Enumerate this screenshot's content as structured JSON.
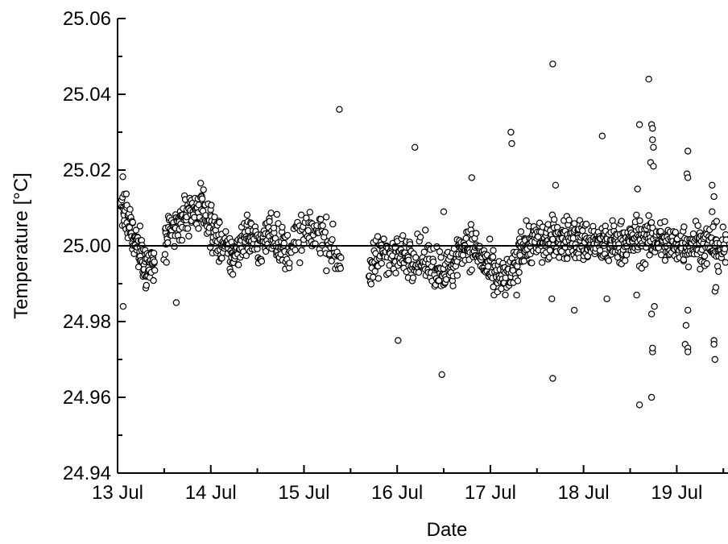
{
  "chart_data": {
    "type": "scatter",
    "xlabel": "Date",
    "ylabel": "Temperature [°C]",
    "x_tick_labels": [
      "13 Jul",
      "14 Jul",
      "15 Jul",
      "16 Jul",
      "17 Jul",
      "18 Jul",
      "19 Jul"
    ],
    "y_tick_labels": [
      "24.94",
      "24.96",
      "24.98",
      "25.00",
      "25.02",
      "25.04",
      "25.06"
    ],
    "x_unit": "days since 13 Jul",
    "xlim": [
      0,
      6.55
    ],
    "ylim": [
      24.94,
      25.06
    ],
    "reference_line": 25.0,
    "grid": false,
    "legend": "none",
    "colors": {
      "marker_edge": "#000000",
      "marker_fill": "#ffffff",
      "line": "#000000"
    },
    "segments": [
      {
        "start": 0.04,
        "end": 0.4,
        "n": 110,
        "values": [
          25.012,
          25.006,
          25.002,
          24.998,
          24.994,
          24.995
        ]
      },
      {
        "start": 0.5,
        "end": 1.05,
        "n": 130,
        "values": [
          25.0,
          25.004,
          25.008,
          25.01,
          25.009,
          25.003
        ]
      },
      {
        "start": 1.05,
        "end": 1.4,
        "n": 90,
        "values": [
          25.003,
          25.0,
          24.998,
          24.997,
          25.002,
          25.003
        ]
      },
      {
        "start": 1.4,
        "end": 1.8,
        "n": 95,
        "values": [
          25.003,
          25.001,
          25.0,
          25.004,
          25.002,
          24.998
        ]
      },
      {
        "start": 1.8,
        "end": 2.4,
        "n": 90,
        "values": [
          24.998,
          25.002,
          25.003,
          25.004,
          25.0,
          24.996
        ]
      },
      {
        "start": 2.7,
        "end": 3.1,
        "n": 80,
        "values": [
          24.993,
          24.996,
          24.999,
          24.998,
          24.997,
          24.998
        ]
      },
      {
        "start": 3.1,
        "end": 3.6,
        "n": 100,
        "values": [
          24.998,
          24.997,
          24.996,
          24.995,
          24.994,
          24.993
        ]
      },
      {
        "start": 3.6,
        "end": 4.3,
        "n": 160,
        "values": [
          24.996,
          25.001,
          24.998,
          24.992,
          24.991,
          24.994
        ]
      },
      {
        "start": 4.3,
        "end": 5.0,
        "n": 170,
        "values": [
          25.0,
          25.001,
          25.001,
          25.002,
          25.002,
          25.001
        ]
      },
      {
        "start": 5.0,
        "end": 5.6,
        "n": 150,
        "values": [
          25.001,
          25.001,
          25.0,
          25.001,
          25.001,
          25.002
        ]
      },
      {
        "start": 5.6,
        "end": 6.55,
        "n": 230,
        "values": [
          25.001,
          25.002,
          25.0,
          25.001,
          25.0,
          24.999
        ]
      }
    ],
    "outliers": [
      {
        "x": 0.06,
        "y": 24.984
      },
      {
        "x": 0.63,
        "y": 24.985
      },
      {
        "x": 2.38,
        "y": 25.036
      },
      {
        "x": 2.18,
        "y": 25.007
      },
      {
        "x": 3.01,
        "y": 24.975
      },
      {
        "x": 3.19,
        "y": 25.026
      },
      {
        "x": 3.48,
        "y": 24.966
      },
      {
        "x": 3.5,
        "y": 25.009
      },
      {
        "x": 3.8,
        "y": 25.018
      },
      {
        "x": 4.22,
        "y": 25.03
      },
      {
        "x": 4.23,
        "y": 25.027
      },
      {
        "x": 4.67,
        "y": 25.048
      },
      {
        "x": 4.67,
        "y": 24.965
      },
      {
        "x": 4.7,
        "y": 25.016
      },
      {
        "x": 4.66,
        "y": 24.986
      },
      {
        "x": 4.9,
        "y": 24.983
      },
      {
        "x": 5.2,
        "y": 25.029
      },
      {
        "x": 5.25,
        "y": 24.986
      },
      {
        "x": 5.6,
        "y": 24.958
      },
      {
        "x": 5.6,
        "y": 25.032
      },
      {
        "x": 5.7,
        "y": 25.044
      },
      {
        "x": 5.73,
        "y": 25.032
      },
      {
        "x": 5.74,
        "y": 25.031
      },
      {
        "x": 5.74,
        "y": 25.028
      },
      {
        "x": 5.75,
        "y": 25.026
      },
      {
        "x": 5.72,
        "y": 25.022
      },
      {
        "x": 5.75,
        "y": 25.021
      },
      {
        "x": 5.73,
        "y": 24.96
      },
      {
        "x": 5.74,
        "y": 24.972
      },
      {
        "x": 5.74,
        "y": 24.973
      },
      {
        "x": 5.73,
        "y": 24.982
      },
      {
        "x": 5.76,
        "y": 24.984
      },
      {
        "x": 5.58,
        "y": 25.015
      },
      {
        "x": 5.57,
        "y": 24.987
      },
      {
        "x": 6.12,
        "y": 25.025
      },
      {
        "x": 6.11,
        "y": 25.019
      },
      {
        "x": 6.12,
        "y": 25.018
      },
      {
        "x": 6.1,
        "y": 24.979
      },
      {
        "x": 6.12,
        "y": 24.983
      },
      {
        "x": 6.09,
        "y": 24.974
      },
      {
        "x": 6.12,
        "y": 24.973
      },
      {
        "x": 6.12,
        "y": 24.972
      },
      {
        "x": 6.38,
        "y": 25.016
      },
      {
        "x": 6.4,
        "y": 25.013
      },
      {
        "x": 6.41,
        "y": 24.988
      },
      {
        "x": 6.42,
        "y": 24.989
      },
      {
        "x": 6.4,
        "y": 24.975
      },
      {
        "x": 6.4,
        "y": 24.974
      },
      {
        "x": 6.41,
        "y": 24.97
      },
      {
        "x": 6.38,
        "y": 25.009
      },
      {
        "x": 6.39,
        "y": 25.005
      }
    ]
  }
}
